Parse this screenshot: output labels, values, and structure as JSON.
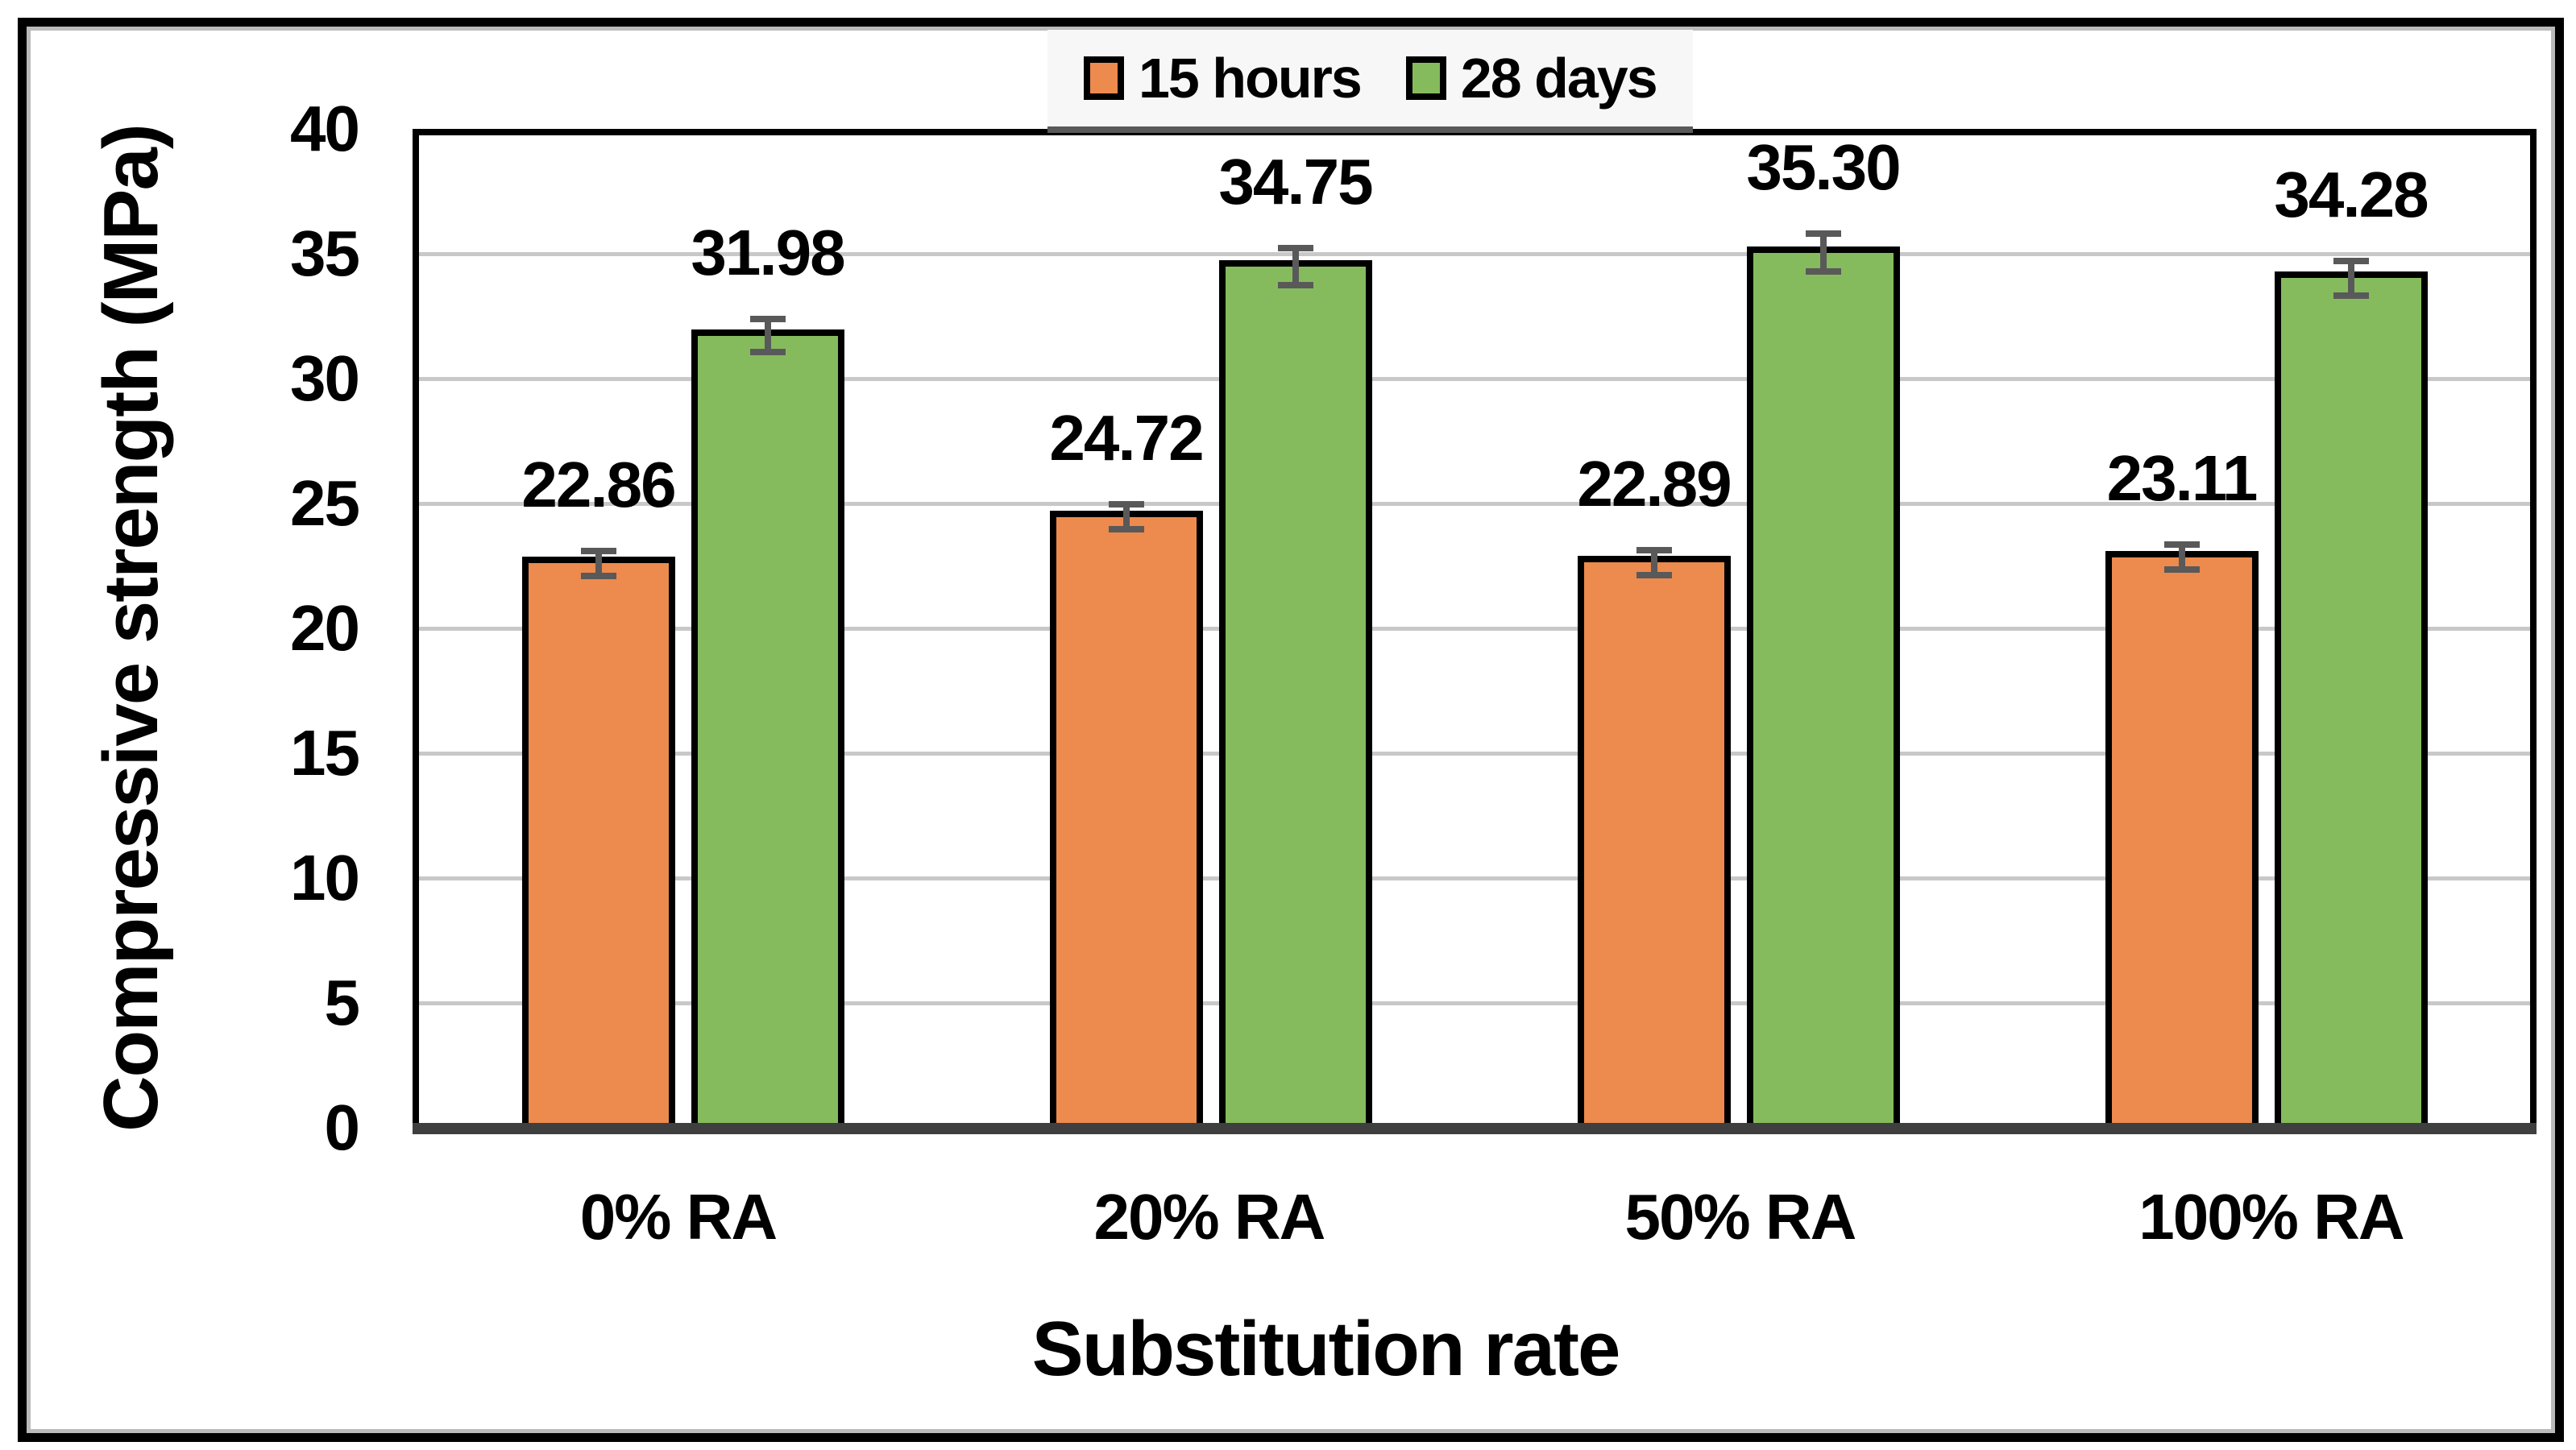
{
  "figure": {
    "background": "#FFFFFF",
    "border_color": "#000000",
    "inner_edge_color": "#BBBBBB"
  },
  "legend": {
    "position": "top",
    "background": "#F7F7F7",
    "underline_color": "#595959",
    "entries": [
      {
        "label": "15 hours",
        "color": "#ED8A4D"
      },
      {
        "label": "28 days",
        "color": "#86BB5D"
      }
    ]
  },
  "chart_data": {
    "type": "bar",
    "title": "",
    "categories": [
      "0% RA",
      "20% RA",
      "50% RA",
      "100% RA"
    ],
    "series": [
      {
        "name": "15 hours",
        "color": "#ED8A4D",
        "values": [
          22.86,
          24.72,
          22.89,
          23.11
        ],
        "labels": [
          "22.86",
          "24.72",
          "22.89",
          "23.11"
        ],
        "errors": [
          0.5,
          0.5,
          0.5,
          0.5
        ]
      },
      {
        "name": "28 days",
        "color": "#86BB5D",
        "values": [
          31.98,
          34.75,
          35.3,
          34.28
        ],
        "labels": [
          "31.98",
          "34.75",
          "35.30",
          "34.28"
        ],
        "errors": [
          0.65,
          0.75,
          0.75,
          0.7
        ]
      }
    ],
    "xlabel": "Substitution rate",
    "ylabel": "Compressive strength (MPa)",
    "ylim": [
      0,
      40
    ],
    "ytick_step": 5,
    "y_tick_labels": [
      "0",
      "5",
      "10",
      "15",
      "20",
      "25",
      "30",
      "35",
      "40"
    ],
    "grid": true,
    "grid_values": [
      5,
      10,
      15,
      20,
      25,
      30,
      35
    ],
    "grid_color": "#C8C8C8",
    "axis_line_color": "#3F3F3F",
    "plot_border_color": "#000000",
    "error_bar_color": "#595959",
    "bar_border_color": "#000000",
    "legend_position": "top",
    "value_labels_shown": true
  }
}
